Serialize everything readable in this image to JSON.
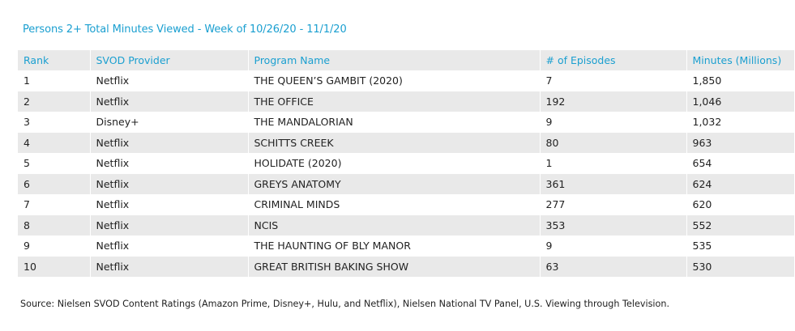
{
  "title": "Persons 2+ Total Minutes Viewed - Week of 10/26/20 - 11/1/20",
  "columns": [
    "Rank",
    "SVOD Provider",
    "Program Name",
    "# of Episodes",
    "Minutes (Millions)"
  ],
  "rows": [
    [
      "1",
      "Netflix",
      "THE QUEEN’S GAMBIT (2020)",
      "7",
      "1,850"
    ],
    [
      "2",
      "Netflix",
      "THE OFFICE",
      "192",
      "1,046"
    ],
    [
      "3",
      "Disney+",
      "THE MANDALORIAN",
      "9",
      "1,032"
    ],
    [
      "4",
      "Netflix",
      "SCHITTS CREEK",
      "80",
      "963"
    ],
    [
      "5",
      "Netflix",
      "HOLIDATE (2020)",
      "1",
      "654"
    ],
    [
      "6",
      "Netflix",
      "GREYS ANATOMY",
      "361",
      "624"
    ],
    [
      "7",
      "Netflix",
      "CRIMINAL MINDS",
      "277",
      "620"
    ],
    [
      "8",
      "Netflix",
      "NCIS",
      "353",
      "552"
    ],
    [
      "9",
      "Netflix",
      "THE HAUNTING OF BLY MANOR",
      "9",
      "535"
    ],
    [
      "10",
      "Netflix",
      "GREAT BRITISH BAKING SHOW",
      "63",
      "530"
    ]
  ],
  "source": "Source: Nielsen SVOD Content Ratings (Amazon Prime, Disney+, Hulu, and Netflix), Nielsen National TV Panel, U.S. Viewing through Television.",
  "colors": {
    "accent": "#1a9fd0",
    "stripe": "#e9e9e9",
    "text": "#222222"
  }
}
